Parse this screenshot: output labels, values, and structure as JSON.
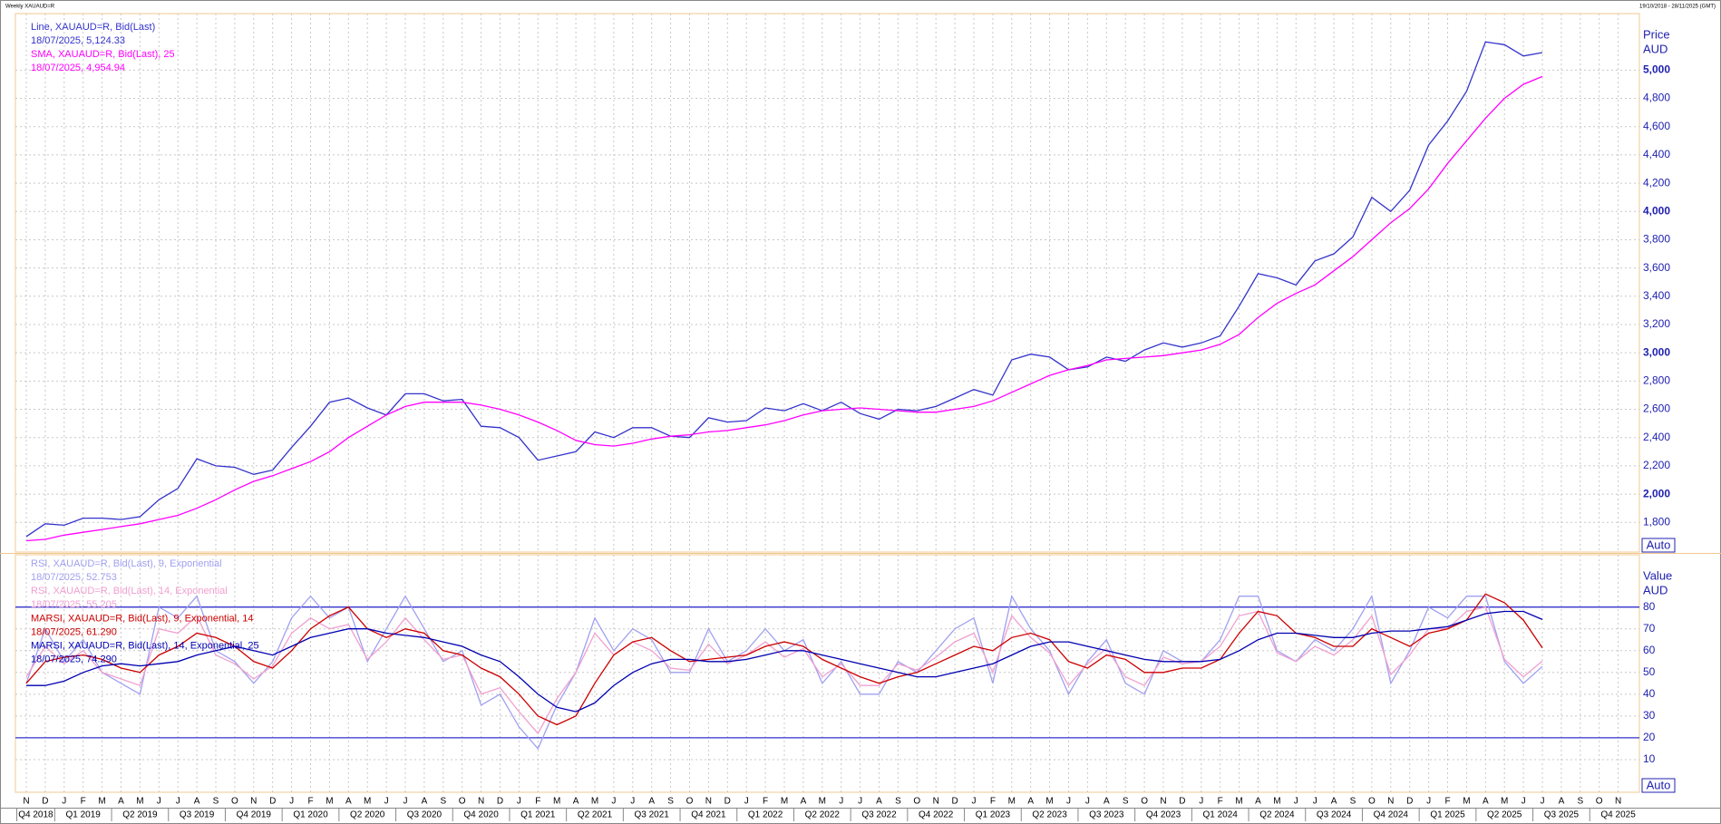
{
  "header": {
    "title": "Weekly XAUAUD=R",
    "range": "19/10/2018 - 28/11/2025 (GMT)",
    "auto": "Auto"
  },
  "chart_data": {
    "type": "line",
    "categories": [
      "N",
      "D",
      "J",
      "F",
      "M",
      "A",
      "M",
      "J",
      "J",
      "A",
      "S",
      "O",
      "N",
      "D",
      "J",
      "F",
      "M",
      "A",
      "M",
      "J",
      "J",
      "A",
      "S",
      "O",
      "N",
      "D",
      "J",
      "F",
      "M",
      "A",
      "M",
      "J",
      "J",
      "A",
      "S",
      "O",
      "N",
      "D",
      "J",
      "F",
      "M",
      "A",
      "M",
      "J",
      "J",
      "A",
      "S",
      "O",
      "N",
      "D",
      "J",
      "F",
      "M",
      "A",
      "M",
      "J",
      "J",
      "A",
      "S",
      "O",
      "N",
      "D",
      "J",
      "F",
      "M",
      "A",
      "M",
      "J",
      "J",
      "A",
      "S",
      "O",
      "N",
      "D",
      "J",
      "F",
      "M",
      "A",
      "M",
      "J",
      "J",
      "A",
      "S",
      "O",
      "N"
    ],
    "quarters": [
      "Q4 2018",
      "Q1 2019",
      "Q2 2019",
      "Q3 2019",
      "Q4 2019",
      "Q1 2020",
      "Q2 2020",
      "Q3 2020",
      "Q4 2020",
      "Q1 2021",
      "Q2 2021",
      "Q3 2021",
      "Q4 2021",
      "Q1 2022",
      "Q2 2022",
      "Q3 2022",
      "Q4 2022",
      "Q1 2023",
      "Q2 2023",
      "Q3 2023",
      "Q4 2023",
      "Q1 2024",
      "Q2 2024",
      "Q3 2024",
      "Q4 2024",
      "Q1 2025",
      "Q2 2025",
      "Q3 2025",
      "Q4 2025"
    ],
    "grid": true,
    "panels": [
      {
        "axis_title": "Price",
        "unit": "AUD",
        "ylim": [
          1590,
          5400
        ],
        "yticks": [
          {
            "value": 1800,
            "label": "1,800"
          },
          {
            "value": 2000,
            "label": "2,000"
          },
          {
            "value": 2200,
            "label": "2,200"
          },
          {
            "value": 2400,
            "label": "2,400"
          },
          {
            "value": 2600,
            "label": "2,600"
          },
          {
            "value": 2800,
            "label": "2,800"
          },
          {
            "value": 3000,
            "label": "3,000"
          },
          {
            "value": 3200,
            "label": "3,200"
          },
          {
            "value": 3400,
            "label": "3,400"
          },
          {
            "value": 3600,
            "label": "3,600"
          },
          {
            "value": 3800,
            "label": "3,800"
          },
          {
            "value": 4000,
            "label": "4,000"
          },
          {
            "value": 4200,
            "label": "4,200"
          },
          {
            "value": 4400,
            "label": "4,400"
          },
          {
            "value": 4600,
            "label": "4,600"
          },
          {
            "value": 4800,
            "label": "4,800"
          },
          {
            "value": 5000,
            "label": "5,000"
          }
        ],
        "series": [
          {
            "name": "Line, XAUAUD=R, Bid(Last)",
            "last": "18/07/2025, 5,124.33",
            "color": "#3333cc",
            "values": [
              1700,
              1790,
              1780,
              1830,
              1830,
              1820,
              1840,
              1960,
              2040,
              2250,
              2200,
              2190,
              2140,
              2170,
              2330,
              2480,
              2650,
              2680,
              2610,
              2560,
              2710,
              2710,
              2660,
              2670,
              2480,
              2470,
              2400,
              2240,
              2270,
              2300,
              2440,
              2400,
              2470,
              2470,
              2410,
              2400,
              2540,
              2510,
              2520,
              2610,
              2590,
              2640,
              2590,
              2650,
              2570,
              2530,
              2600,
              2590,
              2620,
              2680,
              2740,
              2700,
              2950,
              2990,
              2970,
              2880,
              2900,
              2970,
              2940,
              3020,
              3070,
              3040,
              3070,
              3120,
              3330,
              3560,
              3530,
              3480,
              3650,
              3700,
              3820,
              4100,
              4000,
              4150,
              4470,
              4640,
              4850,
              5200,
              5180,
              5100,
              5124.33,
              null,
              null,
              null,
              null
            ]
          },
          {
            "name": "SMA, XAUAUD=R, Bid(Last),  25",
            "last": "18/07/2025, 4,954.94",
            "color": "#ff00ff",
            "values": [
              1670,
              1680,
              1710,
              1730,
              1750,
              1770,
              1790,
              1820,
              1850,
              1900,
              1960,
              2030,
              2090,
              2130,
              2180,
              2230,
              2300,
              2400,
              2480,
              2560,
              2620,
              2650,
              2650,
              2650,
              2630,
              2600,
              2560,
              2510,
              2450,
              2380,
              2350,
              2340,
              2360,
              2390,
              2410,
              2420,
              2440,
              2450,
              2470,
              2490,
              2520,
              2560,
              2590,
              2600,
              2610,
              2600,
              2590,
              2580,
              2580,
              2600,
              2620,
              2660,
              2720,
              2780,
              2840,
              2880,
              2910,
              2950,
              2960,
              2970,
              2980,
              3000,
              3020,
              3060,
              3130,
              3250,
              3350,
              3420,
              3480,
              3580,
              3680,
              3800,
              3920,
              4020,
              4160,
              4340,
              4500,
              4660,
              4800,
              4900,
              4954.94,
              null,
              null,
              null,
              null
            ]
          }
        ]
      },
      {
        "axis_title": "Value",
        "unit": "AUD",
        "ylim": [
          -5,
          104
        ],
        "yticks": [
          10,
          20,
          30,
          40,
          50,
          60,
          70,
          80
        ],
        "reference_lines": [
          20,
          80
        ],
        "reference_color": "#3333cc",
        "series": [
          {
            "name": "RSI, XAUAUD=R, Bid(Last),  9, Exponential",
            "last": "18/07/2025, 52.753",
            "color": "#a0a0f0",
            "values": [
              45,
              70,
              55,
              65,
              50,
              45,
              40,
              80,
              75,
              85,
              60,
              55,
              45,
              55,
              75,
              85,
              75,
              80,
              55,
              70,
              85,
              70,
              55,
              60,
              35,
              40,
              25,
              15,
              35,
              50,
              75,
              60,
              70,
              65,
              50,
              50,
              70,
              55,
              60,
              70,
              60,
              65,
              45,
              55,
              40,
              40,
              55,
              50,
              60,
              70,
              75,
              45,
              85,
              70,
              60,
              40,
              55,
              65,
              45,
              40,
              60,
              55,
              55,
              65,
              85,
              85,
              60,
              55,
              65,
              60,
              70,
              85,
              45,
              60,
              80,
              75,
              85,
              85,
              55,
              45,
              52.753,
              null,
              null,
              null,
              null
            ]
          },
          {
            "name": "RSI, XAUAUD=R, Bid(Last),  14, Exponential",
            "last": "18/07/2025, 55.205",
            "color": "#f0a0d0",
            "values": [
              48,
              62,
              54,
              60,
              50,
              47,
              44,
              70,
              68,
              76,
              58,
              54,
              47,
              53,
              68,
              75,
              70,
              72,
              56,
              64,
              75,
              65,
              56,
              58,
              40,
              43,
              32,
              22,
              38,
              50,
              68,
              58,
              64,
              60,
              52,
              51,
              63,
              54,
              58,
              64,
              57,
              61,
              48,
              54,
              44,
              44,
              54,
              51,
              57,
              64,
              68,
              50,
              76,
              66,
              59,
              44,
              54,
              61,
              48,
              44,
              57,
              54,
              55,
              62,
              76,
              78,
              59,
              55,
              62,
              58,
              65,
              76,
              49,
              58,
              70,
              70,
              78,
              80,
              56,
              48,
              55.205,
              null,
              null,
              null,
              null
            ]
          },
          {
            "name": "MARSI, XAUAUD=R, Bid(Last),  9, Exponential, 14",
            "last": "18/07/2025, 61.290",
            "color": "#cc0000",
            "values": [
              45,
              55,
              57,
              58,
              56,
              52,
              50,
              58,
              62,
              68,
              66,
              62,
              55,
              52,
              60,
              70,
              76,
              80,
              70,
              66,
              70,
              68,
              60,
              58,
              52,
              48,
              40,
              30,
              26,
              30,
              45,
              58,
              64,
              66,
              60,
              55,
              56,
              57,
              58,
              62,
              64,
              62,
              56,
              52,
              48,
              45,
              48,
              50,
              54,
              58,
              62,
              60,
              66,
              68,
              65,
              55,
              52,
              58,
              56,
              50,
              50,
              52,
              52,
              56,
              68,
              78,
              76,
              68,
              66,
              62,
              62,
              70,
              66,
              62,
              68,
              70,
              74,
              86,
              82,
              74,
              61.29,
              null,
              null,
              null,
              null
            ]
          },
          {
            "name": "MARSI, XAUAUD=R, Bid(Last),  14, Exponential, 25",
            "last": "18/07/2025, 74.290",
            "color": "#0000b0",
            "values": [
              44,
              44,
              46,
              50,
              53,
              54,
              53,
              54,
              55,
              58,
              60,
              62,
              60,
              58,
              62,
              66,
              68,
              70,
              70,
              68,
              67,
              66,
              64,
              62,
              58,
              55,
              48,
              40,
              34,
              32,
              36,
              44,
              50,
              54,
              56,
              56,
              55,
              55,
              56,
              58,
              60,
              60,
              58,
              56,
              54,
              52,
              50,
              48,
              48,
              50,
              52,
              54,
              58,
              62,
              64,
              64,
              62,
              60,
              58,
              56,
              55,
              55,
              55,
              56,
              60,
              65,
              68,
              68,
              67,
              66,
              66,
              68,
              69,
              69,
              70,
              71,
              74,
              77,
              78,
              78,
              74.29,
              null,
              null,
              null,
              null
            ]
          }
        ]
      }
    ]
  }
}
